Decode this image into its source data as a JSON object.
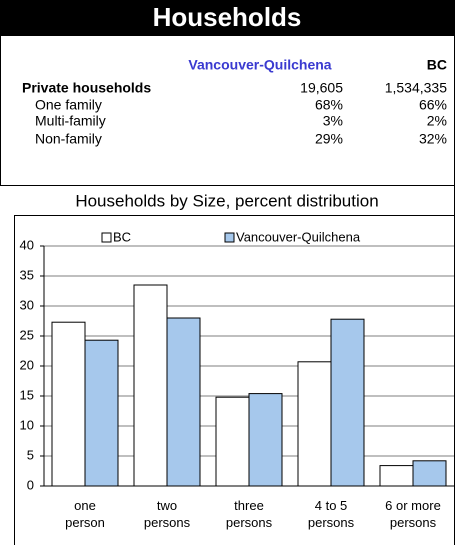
{
  "header": {
    "title": "Households"
  },
  "table": {
    "columns": [
      "Vancouver-Quilchena",
      "BC"
    ],
    "rows": [
      {
        "label": "Private households",
        "values": [
          "19,605",
          "1,534,335"
        ]
      },
      {
        "label": "One family",
        "values": [
          "68%",
          "66%"
        ]
      },
      {
        "label": "Multi-family",
        "values": [
          "3%",
          "2%"
        ]
      },
      {
        "label": "Non-family",
        "values": [
          "29%",
          "32%"
        ]
      }
    ]
  },
  "chart_data": {
    "type": "bar",
    "title": "Households by Size, percent distribution",
    "categories": [
      "one person",
      "two persons",
      "three persons",
      "4 to 5 persons",
      "6 or more persons"
    ],
    "series": [
      {
        "name": "BC",
        "color": "#ffffff",
        "values": [
          27.3,
          33.5,
          14.8,
          20.7,
          3.4
        ]
      },
      {
        "name": "Vancouver-Quilchena",
        "color": "#a6c8ec",
        "values": [
          24.3,
          28.0,
          15.4,
          27.8,
          4.2
        ]
      }
    ],
    "ylim": [
      0,
      40
    ],
    "yticks": [
      0,
      5,
      10,
      15,
      20,
      25,
      30,
      35,
      40
    ],
    "grid": true,
    "legend": "top"
  }
}
